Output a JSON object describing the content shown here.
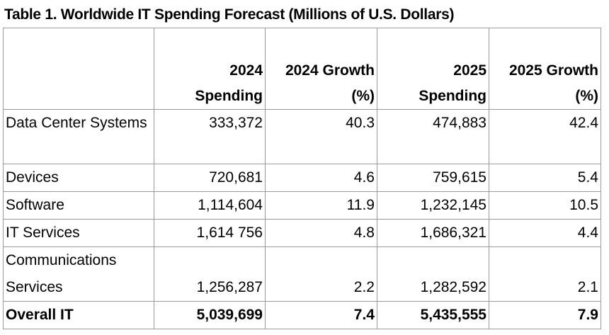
{
  "title": "Table 1. Worldwide IT Spending Forecast (Millions of U.S. Dollars)",
  "columns": [
    {
      "line1": "2024",
      "line2": "Spending"
    },
    {
      "line1": "2024 Growth",
      "line2": "(%)"
    },
    {
      "line1": "2025",
      "line2": "Spending"
    },
    {
      "line1": "2025 Growth",
      "line2": "(%)"
    }
  ],
  "rows": [
    {
      "label": "Data Center Systems",
      "spend_2024": "333,372",
      "growth_2024": "40.3",
      "spend_2025": "474,883",
      "growth_2025": "42.4"
    },
    {
      "label": "Devices",
      "spend_2024": "720,681",
      "growth_2024": "4.6",
      "spend_2025": "759,615",
      "growth_2025": "5.4"
    },
    {
      "label": "Software",
      "spend_2024": "1,114,604",
      "growth_2024": "11.9",
      "spend_2025": "1,232,145",
      "growth_2025": "10.5"
    },
    {
      "label": "IT Services",
      "spend_2024": "1,614 756",
      "growth_2024": "4.8",
      "spend_2025": "1,686,321",
      "growth_2025": "4.4"
    },
    {
      "label": "Communications Services",
      "spend_2024": "1,256,287",
      "growth_2024": "2.2",
      "spend_2025": "1,282,592",
      "growth_2025": "2.1"
    }
  ],
  "total": {
    "label": "Overall IT",
    "spend_2024": "5,039,699",
    "growth_2024": "7.4",
    "spend_2025": "5,435,555",
    "growth_2025": "7.9"
  }
}
